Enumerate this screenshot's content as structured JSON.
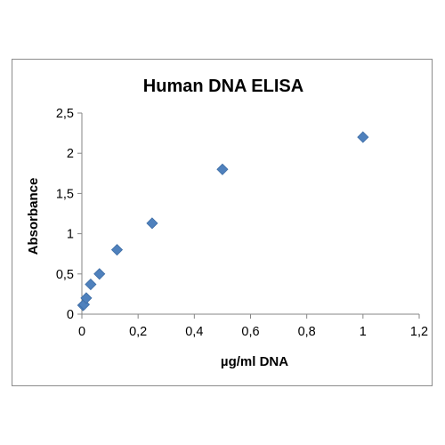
{
  "chart_data": {
    "type": "scatter",
    "title": "Human DNA ELISA",
    "xlabel": "µg/ml DNA",
    "ylabel": "Absorbance",
    "xlim": [
      0,
      1.2
    ],
    "ylim": [
      0,
      2.5
    ],
    "xticks": [
      "0",
      "0,2",
      "0,4",
      "0,6",
      "0,8",
      "1",
      "1,2"
    ],
    "yticks": [
      "0",
      "0,5",
      "1",
      "1,5",
      "2",
      "2,5"
    ],
    "xtick_values": [
      0,
      0.2,
      0.4,
      0.6,
      0.8,
      1.0,
      1.2
    ],
    "ytick_values": [
      0,
      0.5,
      1.0,
      1.5,
      2.0,
      2.5
    ],
    "grid": false,
    "legend": "none",
    "marker": "diamond",
    "color": "#4f81bd",
    "series": [
      {
        "x": [
          0.0039,
          0.0078,
          0.0156,
          0.0313,
          0.0625,
          0.125,
          0.25,
          0.5,
          1.0
        ],
        "y": [
          0.11,
          0.12,
          0.2,
          0.37,
          0.5,
          0.8,
          1.13,
          1.8,
          2.2
        ]
      }
    ]
  }
}
